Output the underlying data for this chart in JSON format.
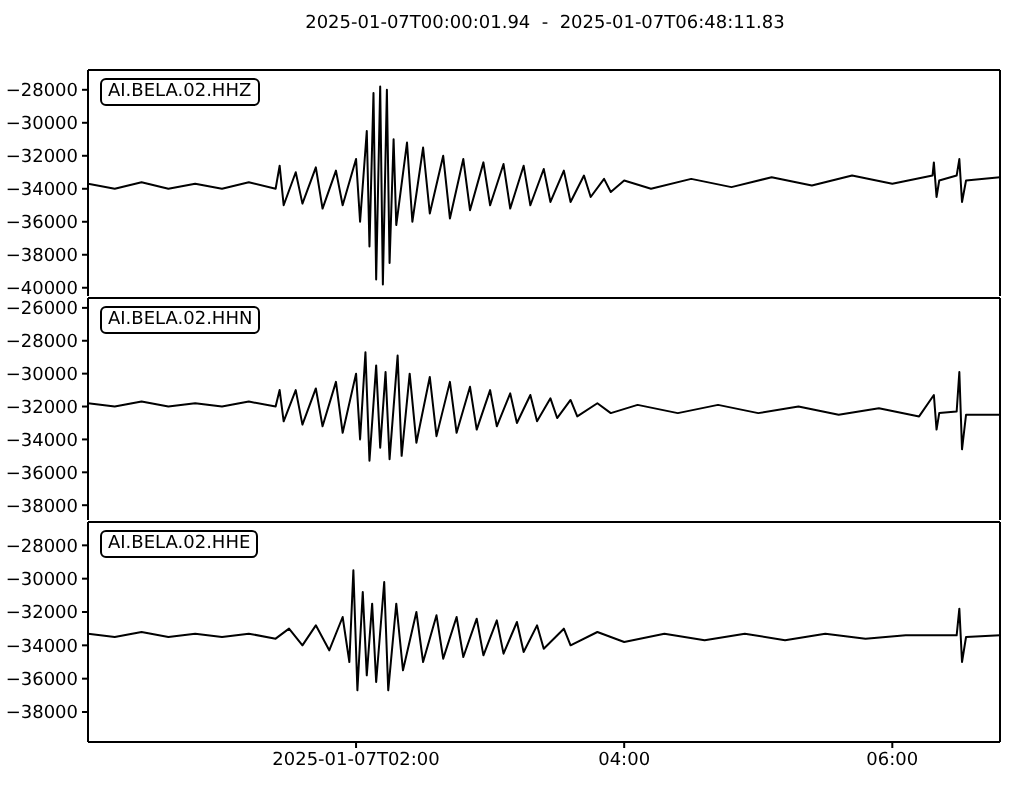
{
  "chart_data": [
    {
      "type": "line",
      "title": "2025-01-07T00:00:01.94  -  2025-01-07T06:48:11.83",
      "annotations": [
        "AI.BELA.02.HHZ"
      ],
      "xlim": [
        0.0005,
        6.8033
      ],
      "xticks": [
        {
          "value": 2,
          "label": null
        },
        {
          "value": 4,
          "label": null
        },
        {
          "value": 6,
          "label": null
        }
      ],
      "ylim": [
        -40500,
        -26800
      ],
      "yticks": [
        -28000,
        -30000,
        -32000,
        -34000,
        -36000,
        -38000,
        -40000
      ],
      "tick_labels": "y",
      "x": [
        0.0005,
        0.2,
        0.4,
        0.6,
        0.8,
        1.0,
        1.2,
        1.4,
        1.43,
        1.46,
        1.55,
        1.6,
        1.7,
        1.75,
        1.85,
        1.9,
        2.0,
        2.03,
        2.08,
        2.1,
        2.13,
        2.15,
        2.18,
        2.2,
        2.23,
        2.25,
        2.28,
        2.3,
        2.38,
        2.42,
        2.5,
        2.55,
        2.65,
        2.7,
        2.8,
        2.85,
        2.95,
        3.0,
        3.1,
        3.15,
        3.25,
        3.3,
        3.4,
        3.45,
        3.55,
        3.6,
        3.7,
        3.75,
        3.85,
        3.9,
        4.0,
        4.2,
        4.5,
        4.8,
        5.1,
        5.4,
        5.7,
        6.0,
        6.3,
        6.31,
        6.33,
        6.35,
        6.48,
        6.5,
        6.52,
        6.55,
        6.8033
      ],
      "series": [
        {
          "color": "#000000",
          "values": [
            -33700,
            -34000,
            -33600,
            -34000,
            -33700,
            -34000,
            -33600,
            -34000,
            -32600,
            -35000,
            -33000,
            -34900,
            -32700,
            -35200,
            -32900,
            -35000,
            -32200,
            -36000,
            -30500,
            -37500,
            -28200,
            -39500,
            -27800,
            -39800,
            -28000,
            -38500,
            -31000,
            -36200,
            -31200,
            -36000,
            -31500,
            -35500,
            -32000,
            -35800,
            -32200,
            -35300,
            -32400,
            -35000,
            -32500,
            -35200,
            -32600,
            -35000,
            -32800,
            -34800,
            -32900,
            -34800,
            -33200,
            -34500,
            -33400,
            -34200,
            -33500,
            -34000,
            -33400,
            -33900,
            -33300,
            -33800,
            -33200,
            -33700,
            -33200,
            -32400,
            -34500,
            -33500,
            -33200,
            -32200,
            -34800,
            -33500,
            -33300
          ]
        }
      ]
    },
    {
      "type": "line",
      "annotations": [
        "AI.BELA.02.HHN"
      ],
      "xlim": [
        0.0005,
        6.8033
      ],
      "xticks": [
        {
          "value": 2,
          "label": null
        },
        {
          "value": 4,
          "label": null
        },
        {
          "value": 6,
          "label": null
        }
      ],
      "ylim": [
        -38900,
        -25400
      ],
      "yticks": [
        -26000,
        -28000,
        -30000,
        -32000,
        -34000,
        -36000,
        -38000
      ],
      "tick_labels": "y",
      "x": [
        0.0005,
        0.2,
        0.4,
        0.6,
        0.8,
        1.0,
        1.2,
        1.4,
        1.43,
        1.46,
        1.55,
        1.6,
        1.7,
        1.75,
        1.85,
        1.9,
        2.0,
        2.03,
        2.07,
        2.1,
        2.15,
        2.18,
        2.22,
        2.25,
        2.31,
        2.34,
        2.4,
        2.45,
        2.55,
        2.6,
        2.7,
        2.75,
        2.85,
        2.9,
        3.0,
        3.05,
        3.15,
        3.2,
        3.3,
        3.35,
        3.45,
        3.5,
        3.6,
        3.65,
        3.8,
        3.9,
        4.1,
        4.4,
        4.7,
        5.0,
        5.3,
        5.6,
        5.9,
        6.2,
        6.31,
        6.33,
        6.35,
        6.48,
        6.5,
        6.52,
        6.55,
        6.8033
      ],
      "series": [
        {
          "color": "#000000",
          "values": [
            -31800,
            -32000,
            -31700,
            -32000,
            -31800,
            -32000,
            -31700,
            -32000,
            -31000,
            -32900,
            -31000,
            -33100,
            -30900,
            -33200,
            -30500,
            -33600,
            -30000,
            -34000,
            -28700,
            -35300,
            -29500,
            -34500,
            -29900,
            -35200,
            -28900,
            -35000,
            -30000,
            -34200,
            -30200,
            -33800,
            -30500,
            -33600,
            -30800,
            -33400,
            -31000,
            -33200,
            -31200,
            -33000,
            -31300,
            -32900,
            -31500,
            -32700,
            -31600,
            -32600,
            -31800,
            -32400,
            -31900,
            -32400,
            -31900,
            -32400,
            -32000,
            -32500,
            -32100,
            -32600,
            -31300,
            -33400,
            -32400,
            -32300,
            -29900,
            -34600,
            -32500,
            -32500
          ]
        }
      ]
    },
    {
      "type": "line",
      "annotations": [
        "AI.BELA.02.HHE"
      ],
      "xlim": [
        0.0005,
        6.8033
      ],
      "xticks": [
        {
          "value": 2,
          "label": "2025-01-07T02:00"
        },
        {
          "value": 4,
          "label": "04:00"
        },
        {
          "value": 6,
          "label": "06:00"
        }
      ],
      "ylim": [
        -39800,
        -26600
      ],
      "yticks": [
        -28000,
        -30000,
        -32000,
        -34000,
        -36000,
        -38000
      ],
      "x": [
        0.0005,
        0.2,
        0.4,
        0.6,
        0.8,
        1.0,
        1.2,
        1.4,
        1.5,
        1.6,
        1.7,
        1.8,
        1.9,
        1.95,
        1.98,
        2.01,
        2.05,
        2.08,
        2.12,
        2.15,
        2.21,
        2.24,
        2.3,
        2.35,
        2.45,
        2.5,
        2.6,
        2.65,
        2.75,
        2.8,
        2.9,
        2.95,
        3.05,
        3.1,
        3.2,
        3.25,
        3.35,
        3.4,
        3.55,
        3.6,
        3.8,
        4.0,
        4.3,
        4.6,
        4.9,
        5.2,
        5.5,
        5.8,
        6.1,
        6.48,
        6.5,
        6.52,
        6.55,
        6.8033
      ],
      "series": [
        {
          "color": "#000000",
          "values": [
            -33300,
            -33500,
            -33200,
            -33500,
            -33300,
            -33500,
            -33300,
            -33600,
            -33000,
            -34000,
            -32800,
            -34300,
            -32300,
            -35000,
            -29500,
            -36700,
            -30800,
            -35800,
            -31500,
            -36200,
            -30200,
            -36700,
            -31500,
            -35500,
            -32000,
            -35000,
            -32200,
            -34800,
            -32300,
            -34700,
            -32400,
            -34600,
            -32500,
            -34500,
            -32600,
            -34400,
            -32800,
            -34200,
            -33000,
            -34000,
            -33200,
            -33800,
            -33300,
            -33700,
            -33300,
            -33700,
            -33300,
            -33600,
            -33400,
            -33400,
            -31800,
            -35000,
            -33500,
            -33400
          ]
        }
      ]
    }
  ]
}
